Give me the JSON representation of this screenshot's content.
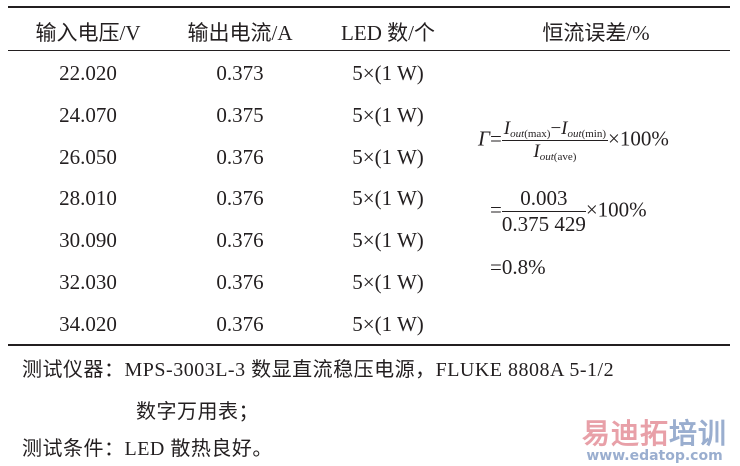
{
  "table": {
    "headers": [
      "输入电压/V",
      "输出电流/A",
      "LED 数/个",
      "恒流误差/%"
    ],
    "rows": [
      [
        "22.020",
        "0.373",
        "5×(1 W)"
      ],
      [
        "24.070",
        "0.375",
        "5×(1 W)"
      ],
      [
        "26.050",
        "0.376",
        "5×(1 W)"
      ],
      [
        "28.010",
        "0.376",
        "5×(1 W)"
      ],
      [
        "30.090",
        "0.376",
        "5×(1 W)"
      ],
      [
        "32.030",
        "0.376",
        "5×(1 W)"
      ],
      [
        "34.020",
        "0.376",
        "5×(1 W)"
      ]
    ]
  },
  "formula": {
    "symbol": "Γ",
    "eq": "=",
    "I": "I",
    "out": "out",
    "max": "(max)",
    "min": "(min)",
    "ave": "(ave)",
    "minus": "−",
    "times": "×100%",
    "num2": "0.003",
    "den2": "0.375 429",
    "result": "=0.8%"
  },
  "notes": {
    "line1": "测试仪器：MPS-3003L-3 数显直流稳压电源，FLUKE 8808A 5-1/2",
    "line2": "数字万用表；",
    "line3": "测试条件：LED 散热良好。"
  },
  "watermark": {
    "brand_red": "易迪拓",
    "brand_blue": "培训",
    "url": "www.edatop.com",
    "red": "#e8a0a8",
    "blue": "#9aaecf"
  }
}
